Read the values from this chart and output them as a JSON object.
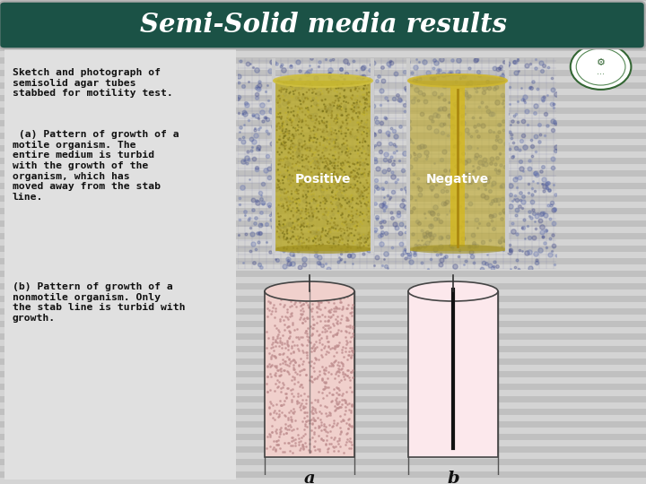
{
  "title": "Semi-Solid media results",
  "title_bg_color": "#1b5246",
  "title_text_color": "#ffffff",
  "bg_color": "#cbcbcb",
  "text1": "Sketch and photograph of\nsemisolid agar tubes\nstabbed for motility test.",
  "text2": " (a) Pattern of growth of a\nmotile organism. The\nentire medium is turbid\nwith the growth of the\norganism, which has\nmoved away from the stab\nline.",
  "text3": "(b) Pattern of growth of a\nnonmotile organism. Only\nthe stab line is turbid with\ngrowth.",
  "positive_label": "Positive",
  "negative_label": "Negative",
  "label_a": "a",
  "label_b": "b",
  "sketch_a_fill": "#f0d0cc",
  "sketch_b_fill": "#fce8ec",
  "text_color": "#111111",
  "stripe_light": "#d4d4d4",
  "stripe_dark": "#c0c0c0",
  "photo_bg_top": "#4a5898",
  "photo_bg_bot": "#6a72a8",
  "tube_left_color": "#b8a828",
  "tube_right_color": "#c8b830",
  "stab_color": "#7a5a10",
  "left_panel_bg": "#e0e0e0",
  "sketch_bg": "#e8e8e8"
}
